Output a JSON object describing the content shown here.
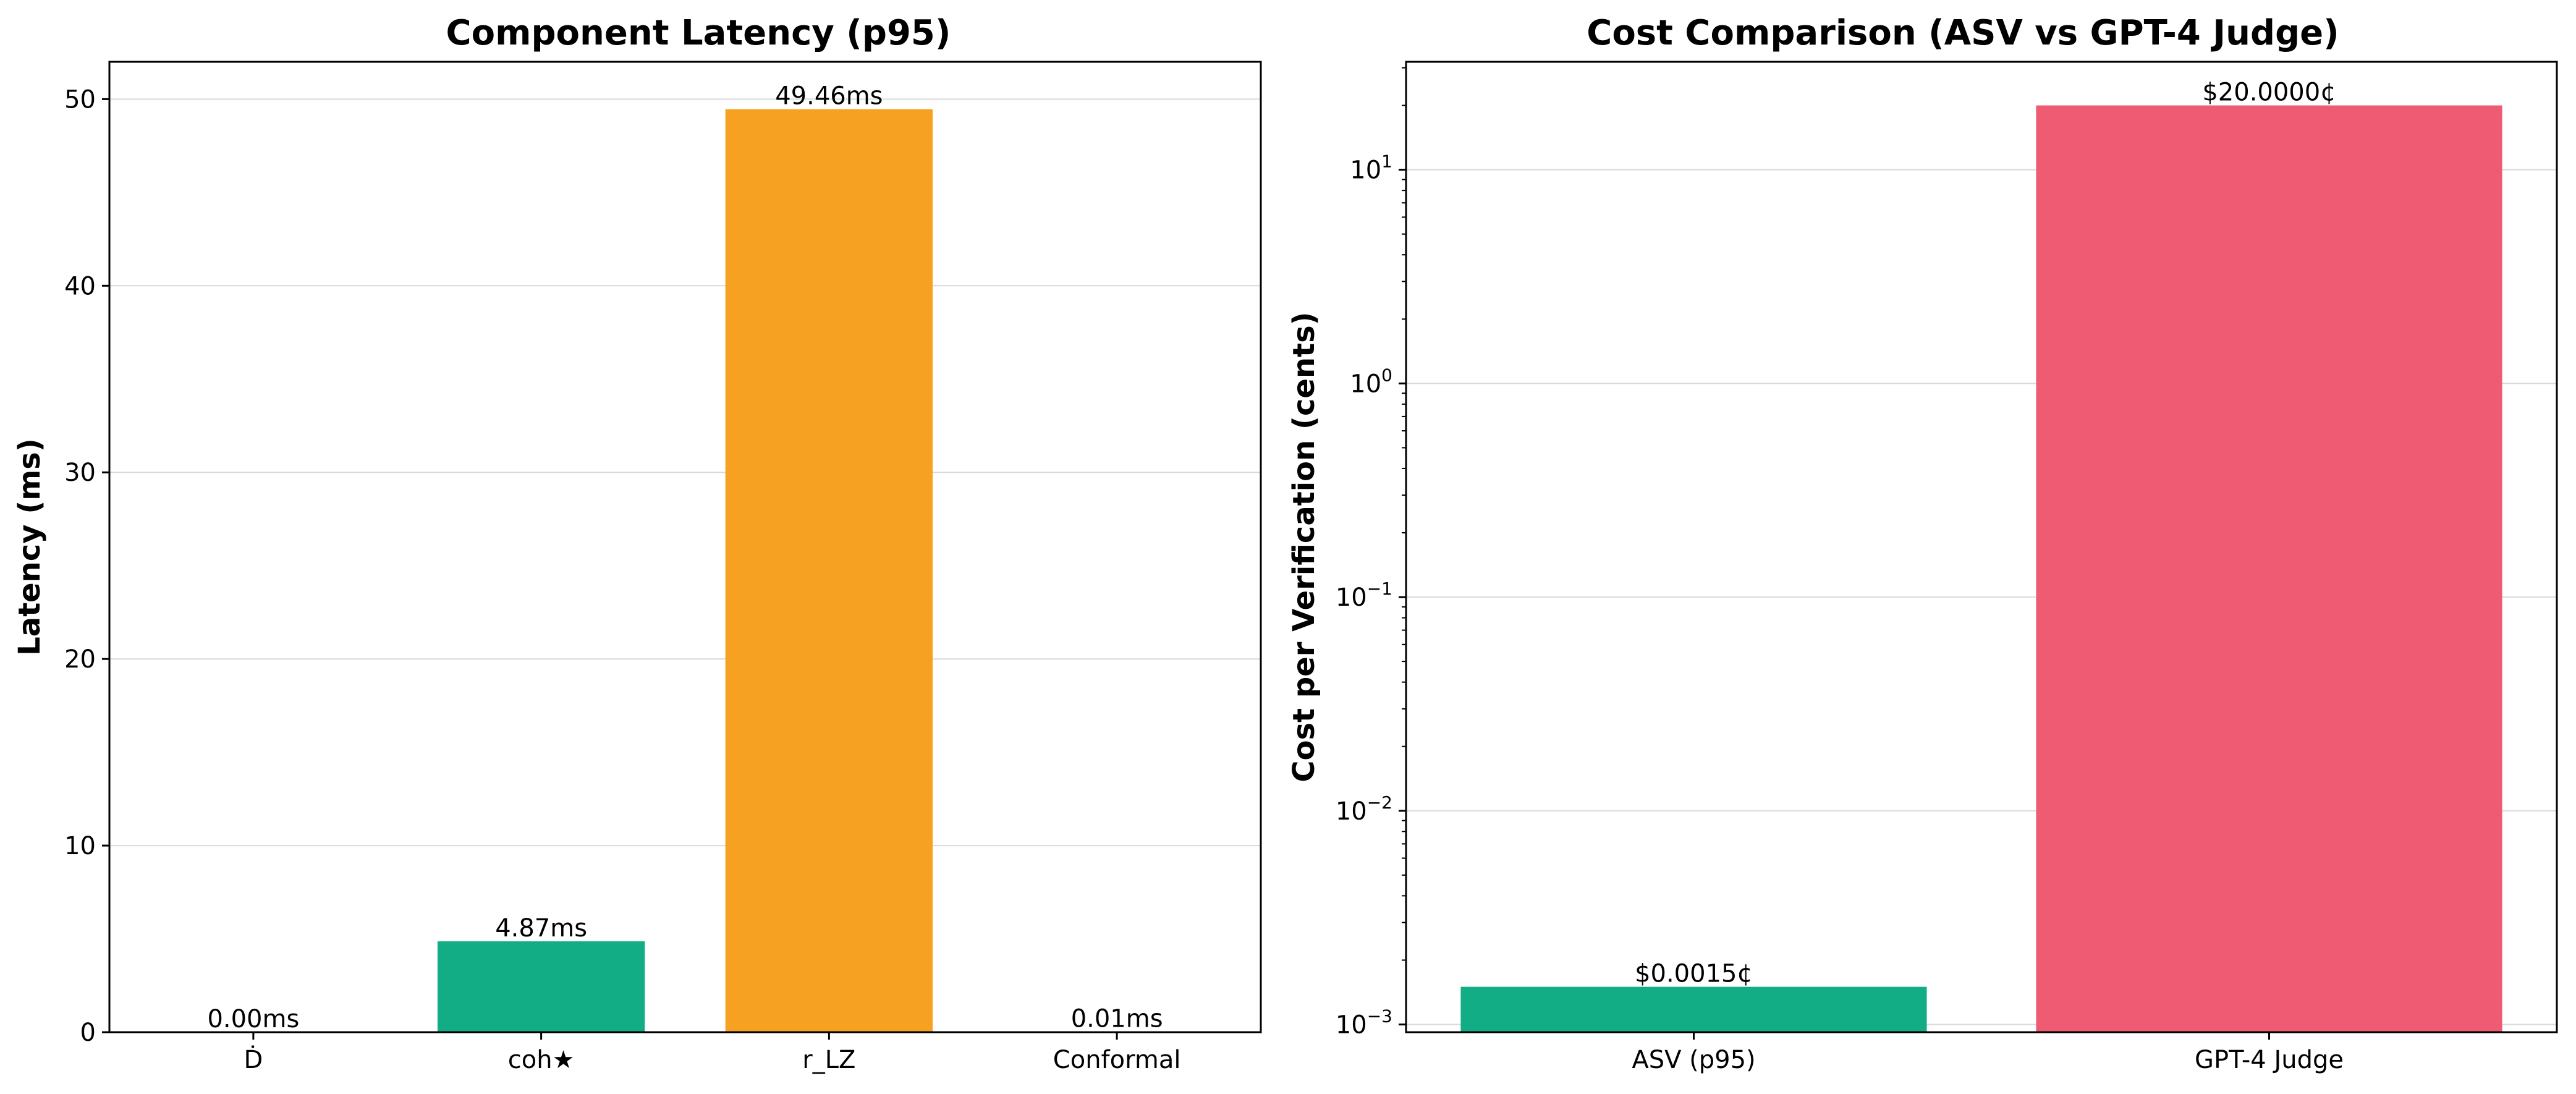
{
  "chart_data": [
    {
      "type": "bar",
      "title": "Component Latency (p95)",
      "xlabel": "",
      "ylabel": "Latency (ms)",
      "ylim": [
        0,
        52
      ],
      "yscale": "linear",
      "yticks": [
        0,
        10,
        20,
        30,
        40,
        50
      ],
      "ytick_labels": [
        "0",
        "10",
        "20",
        "30",
        "40",
        "50"
      ],
      "grid": true,
      "legend": false,
      "categories": [
        "Ḋ",
        "coh★",
        "r_LZ",
        "Conformal"
      ],
      "values": [
        0.0,
        4.87,
        49.46,
        0.01
      ],
      "value_labels": [
        "0.00ms",
        "4.87ms",
        "49.46ms",
        "0.01ms"
      ],
      "colors": [
        "#2e86ab",
        "#12ad84",
        "#f6a121",
        "#7b3fa0"
      ]
    },
    {
      "type": "bar",
      "title": "Cost Comparison (ASV vs GPT-4 Judge)",
      "xlabel": "",
      "ylabel": "Cost per Verification (cents)",
      "ylim": [
        0.00092,
        32
      ],
      "yscale": "log",
      "yticks": [
        0.001,
        0.01,
        0.1,
        1,
        10
      ],
      "ytick_mantissa": [
        "10",
        "10",
        "10",
        "10",
        "10"
      ],
      "ytick_exponents": [
        "−3",
        "−2",
        "−1",
        "0",
        "1"
      ],
      "grid": true,
      "legend": false,
      "categories": [
        "ASV (p95)",
        "GPT-4 Judge"
      ],
      "values": [
        0.0015,
        20.0
      ],
      "value_labels": [
        "$0.0015¢",
        "$20.0000¢"
      ],
      "colors": [
        "#12ad84",
        "#ee5b72"
      ]
    }
  ]
}
